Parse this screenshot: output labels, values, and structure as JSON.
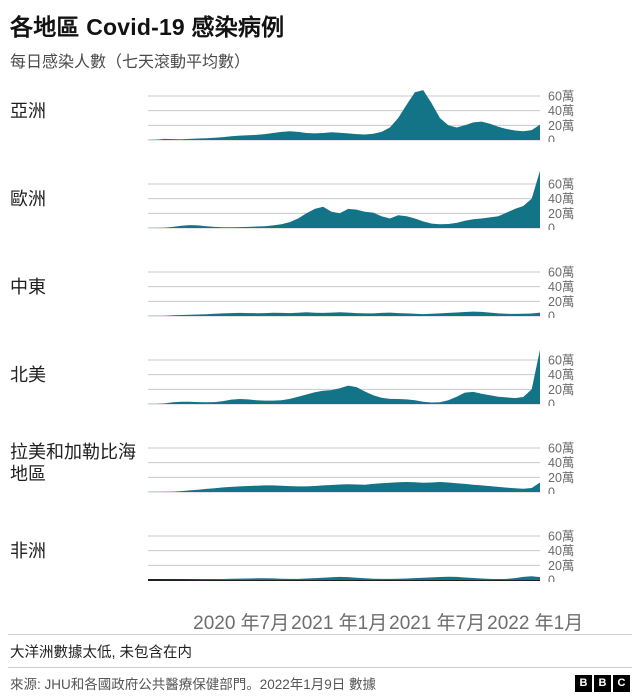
{
  "header": {
    "title": "各地區 Covid-19 感染病例",
    "subtitle": "每日感染人數（七天滾動平均數）"
  },
  "chart_data": {
    "type": "area",
    "title": "各地區 Covid-19 感染病例",
    "subtitle": "每日感染人數（七天滾動平均數）",
    "unit": "萬 (10,000 cases per day, 7-day rolling average)",
    "x_range": [
      "2020-01",
      "2022-01"
    ],
    "ylim": [
      0,
      79
    ],
    "grid": true,
    "color": "#137387",
    "gridline_color": "#c9c9c9",
    "yticks": [
      {
        "value": 60,
        "label": "60萬"
      },
      {
        "value": 40,
        "label": "40萬"
      },
      {
        "value": 20,
        "label": "20萬"
      },
      {
        "value": 0,
        "label": "0"
      }
    ],
    "xticks": [
      {
        "pos": 0.25,
        "label": "2020 年7月"
      },
      {
        "pos": 0.5,
        "label": "2021 年1月"
      },
      {
        "pos": 0.75,
        "label": "2021 年7月"
      },
      {
        "pos": 1.0,
        "label": "2022 年1月"
      }
    ],
    "series": [
      {
        "name": "亞洲",
        "values": [
          0.2,
          0.5,
          1.5,
          1.2,
          1.0,
          1.5,
          2.0,
          2.5,
          3.0,
          4.0,
          5.0,
          6.0,
          6.5,
          7.0,
          8.0,
          9.5,
          11.0,
          12.0,
          11.0,
          9.5,
          9.0,
          9.5,
          10.5,
          10.0,
          9.0,
          8.0,
          7.5,
          8.5,
          11.0,
          17.0,
          30.0,
          48.0,
          65.0,
          68.0,
          50.0,
          30.0,
          20.0,
          17.0,
          20.0,
          24.0,
          25.0,
          22.0,
          18.0,
          15.0,
          13.0,
          12.0,
          13.5,
          21.0
        ]
      },
      {
        "name": "歐洲",
        "values": [
          0.1,
          0.2,
          0.6,
          1.5,
          3.0,
          4.0,
          3.5,
          2.5,
          1.5,
          1.0,
          1.0,
          1.2,
          1.5,
          2.0,
          2.5,
          3.5,
          5.0,
          8.0,
          13.0,
          20.0,
          26.0,
          29.0,
          22.0,
          20.0,
          26.0,
          25.0,
          22.0,
          21.0,
          16.0,
          13.0,
          17.5,
          16.0,
          13.0,
          9.0,
          6.0,
          5.0,
          5.5,
          7.0,
          10.0,
          12.0,
          13.0,
          14.5,
          16.0,
          21.0,
          26.0,
          30.0,
          40.0,
          78.0
        ]
      },
      {
        "name": "中東",
        "values": [
          0.1,
          0.2,
          0.4,
          0.9,
          1.3,
          1.6,
          2.0,
          2.5,
          3.0,
          3.5,
          4.0,
          4.2,
          4.0,
          3.8,
          4.0,
          4.5,
          4.2,
          4.0,
          4.5,
          5.0,
          4.5,
          4.2,
          4.6,
          5.0,
          4.6,
          4.0,
          3.6,
          3.6,
          4.2,
          4.6,
          4.0,
          3.5,
          3.0,
          2.6,
          3.0,
          3.6,
          4.2,
          4.8,
          5.4,
          6.0,
          5.6,
          4.6,
          3.6,
          3.0,
          2.8,
          3.0,
          3.4,
          4.6
        ]
      },
      {
        "name": "北美",
        "values": [
          0.1,
          0.2,
          0.8,
          2.5,
          3.2,
          3.0,
          2.6,
          2.3,
          2.6,
          4.0,
          6.0,
          6.8,
          6.2,
          5.2,
          4.6,
          4.6,
          5.2,
          7.0,
          10.0,
          13.0,
          16.0,
          18.0,
          19.0,
          21.5,
          25.0,
          23.0,
          17.0,
          12.0,
          8.5,
          7.0,
          6.8,
          6.2,
          5.0,
          3.0,
          2.0,
          2.5,
          5.0,
          10.0,
          15.5,
          16.5,
          14.0,
          12.0,
          10.0,
          9.0,
          8.0,
          9.5,
          20.0,
          74.0
        ]
      },
      {
        "name": "拉美和加勒比海地區",
        "values": [
          0.1,
          0.1,
          0.3,
          0.6,
          1.2,
          2.2,
          3.2,
          4.2,
          5.2,
          6.2,
          7.0,
          7.6,
          8.2,
          8.6,
          9.0,
          9.0,
          8.6,
          8.0,
          7.6,
          7.6,
          8.2,
          9.0,
          9.6,
          10.2,
          10.6,
          10.2,
          10.0,
          11.0,
          12.0,
          12.6,
          13.2,
          13.6,
          13.2,
          12.6,
          13.0,
          13.6,
          13.0,
          12.0,
          11.0,
          10.0,
          9.0,
          8.0,
          7.0,
          6.0,
          5.0,
          4.5,
          5.5,
          13.0
        ]
      },
      {
        "name": "非洲",
        "values": [
          0.0,
          0.0,
          0.1,
          0.1,
          0.2,
          0.3,
          0.5,
          0.8,
          1.0,
          1.3,
          1.6,
          1.9,
          2.1,
          2.3,
          2.5,
          2.2,
          1.8,
          1.5,
          1.5,
          2.0,
          2.6,
          3.2,
          3.8,
          4.2,
          4.0,
          3.2,
          2.4,
          1.8,
          1.5,
          1.5,
          1.8,
          2.1,
          2.6,
          3.1,
          3.6,
          4.1,
          4.5,
          4.2,
          3.4,
          2.7,
          2.0,
          1.5,
          1.2,
          1.5,
          2.6,
          4.2,
          5.0,
          4.0
        ]
      }
    ]
  },
  "footer": {
    "note": "大洋洲數據太低, 未包含在内",
    "source": "來源: JHU和各國政府公共醫療保健部門。2022年1月9日 數據",
    "logo": [
      "B",
      "B",
      "C"
    ]
  }
}
